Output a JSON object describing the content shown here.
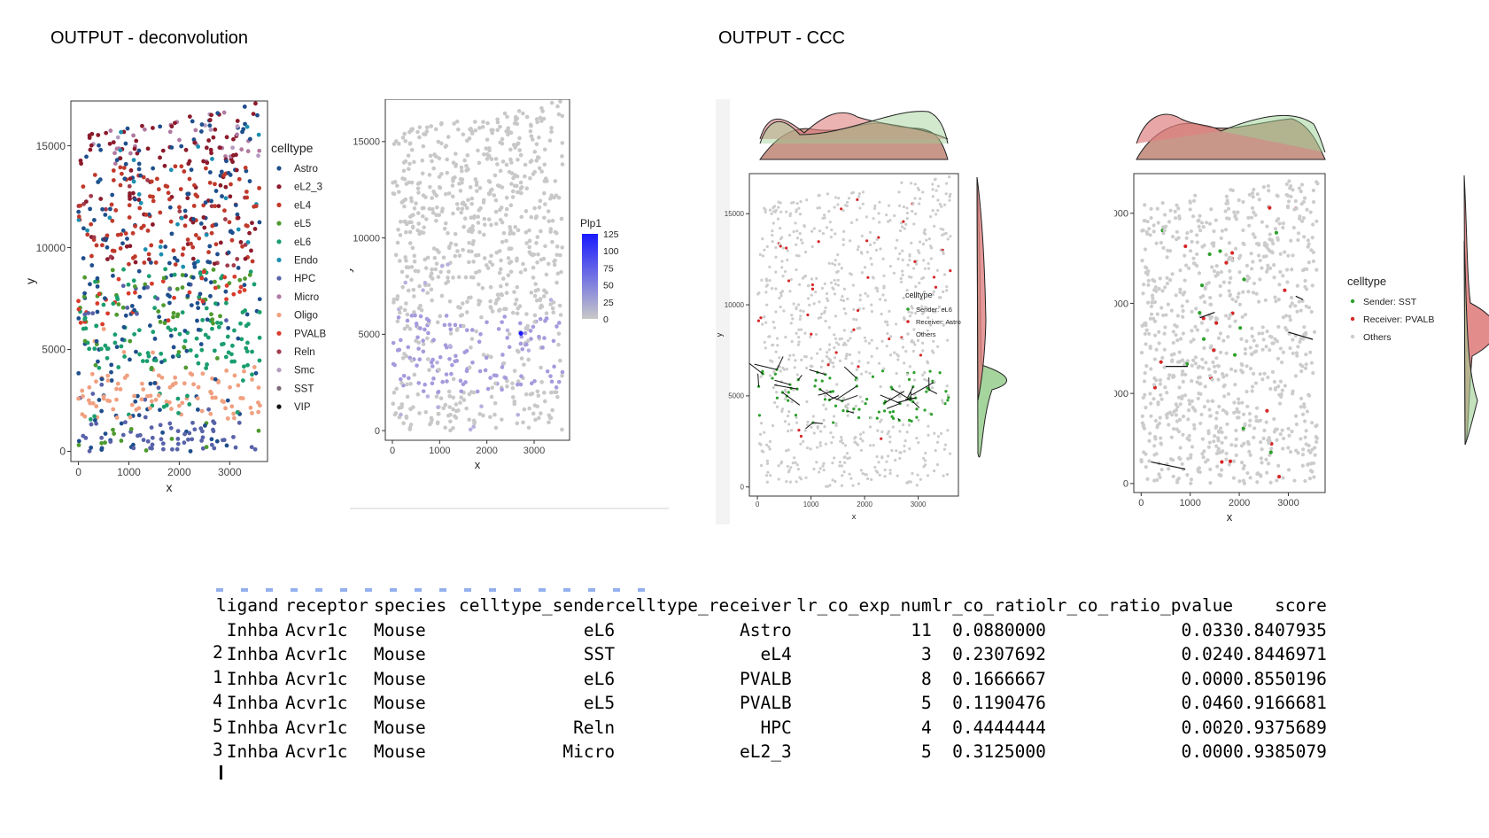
{
  "headings": {
    "deconvolution": "OUTPUT - deconvolution",
    "ccc": "OUTPUT - CCC"
  },
  "chart_data": [
    {
      "type": "scatter",
      "xlabel": "x",
      "ylabel": "y",
      "xticks": [
        0,
        1000,
        2000,
        3000
      ],
      "yticks": [
        0,
        5000,
        10000,
        15000
      ],
      "xlim": [
        -150,
        3750
      ],
      "ylim": [
        -500,
        17200
      ],
      "legend": {
        "title": "celltype",
        "placement": "right",
        "entries": [
          "Astro",
          "eL2_3",
          "eL4",
          "eL5",
          "eL6",
          "Endo",
          "HPC",
          "Micro",
          "Oligo",
          "PVALB",
          "Reln",
          "Smc",
          "SST",
          "VIP"
        ]
      },
      "colors": {
        "Astro": "#1f4e8c",
        "eL2_3": "#8b1a2b",
        "eL4": "#c0392b",
        "eL5": "#4e9a2f",
        "eL6": "#1b9e6e",
        "Endo": "#1b8fb0",
        "HPC": "#5862a8",
        "Micro": "#b07aa1",
        "Oligo": "#f0a080",
        "PVALB": "#d93a2b",
        "Reln": "#a23b4b",
        "Smc": "#b39cc0",
        "SST": "#7a6a7a",
        "VIP": "#111111"
      },
      "bands": [
        {
          "y": [
            14000,
            16800
          ],
          "mix": {
            "eL2_3": 5,
            "Astro": 3,
            "Micro": 3,
            "Endo": 1,
            "Smc": 1
          }
        },
        {
          "y": [
            9000,
            14000
          ],
          "mix": {
            "eL4": 6,
            "eL2_3": 3,
            "Astro": 3,
            "Endo": 1,
            "Reln": 1
          }
        },
        {
          "y": [
            6200,
            9000
          ],
          "mix": {
            "eL5": 3,
            "eL6": 3,
            "Astro": 3,
            "PVALB": 2,
            "HPC": 1
          }
        },
        {
          "y": [
            4000,
            6200
          ],
          "mix": {
            "eL6": 6,
            "Astro": 2,
            "eL5": 1,
            "Oligo": 1
          }
        },
        {
          "y": [
            1500,
            4000
          ],
          "mix": {
            "Oligo": 6,
            "Astro": 2,
            "eL6": 1,
            "HPC": 1
          }
        },
        {
          "y": [
            0,
            1500
          ],
          "mix": {
            "HPC": 7,
            "Astro": 2,
            "eL5": 1
          }
        }
      ]
    },
    {
      "type": "scatter",
      "xlabel": "x",
      "ylabel": "y",
      "xticks": [
        0,
        1000,
        2000,
        3000
      ],
      "yticks": [
        0,
        5000,
        10000,
        15000
      ],
      "xlim": [
        -150,
        3750
      ],
      "ylim": [
        -500,
        17200
      ],
      "colorbar": {
        "title": "Plp1",
        "ticks": [
          125,
          100,
          75,
          50,
          25,
          0
        ],
        "low": "#c8c8c8",
        "high": "#1a1aff"
      },
      "expression_band": {
        "y": [
          2000,
          6000
        ],
        "level": 35
      },
      "peak_point": {
        "x": 2720,
        "y": 5050,
        "value": 125
      }
    },
    {
      "type": "scatter",
      "xlabel": "x",
      "ylabel": "y",
      "xticks": [
        0,
        1000,
        2000,
        3000
      ],
      "yticks": [
        0,
        5000,
        10000,
        15000
      ],
      "xlim": [
        -150,
        3750
      ],
      "ylim": [
        -500,
        17200
      ],
      "legend": {
        "title": "celltype",
        "placement": "right",
        "entries": [
          "Sender: eL6",
          "Receiver: Astro",
          "Others"
        ]
      },
      "colors": {
        "sender": "#2ca02c",
        "receiver": "#d62728",
        "others": "#cccccc"
      },
      "sender_band": {
        "y": [
          3500,
          6500
        ]
      },
      "receiver_band": {
        "y": [
          6500,
          16000
        ]
      }
    },
    {
      "type": "scatter",
      "xlabel": "x",
      "ylabel": "y",
      "xticks": [
        0,
        1000,
        2000,
        3000
      ],
      "yticks": [
        0,
        5000,
        10000,
        15000
      ],
      "xlim": [
        -150,
        3750
      ],
      "ylim": [
        -500,
        17200
      ],
      "legend": {
        "title": "celltype",
        "placement": "right",
        "entries": [
          "Sender: SST",
          "Receiver: PVALB",
          "Others"
        ]
      },
      "colors": {
        "sender": "#2ca02c",
        "receiver": "#d62728",
        "others": "#cccccc"
      }
    }
  ],
  "table": {
    "columns": [
      "ligand",
      "receptor",
      "species",
      "celltype_sender",
      "celltype_receiver",
      "lr_co_exp_num",
      "lr_co_ratio",
      "lr_co_ratio_pvalue",
      "score"
    ],
    "row_index_fragments": [
      "",
      "2",
      "1",
      "4",
      "5",
      "3"
    ],
    "rows": [
      [
        "Inhba",
        "Acvr1c",
        "Mouse",
        "eL6",
        "Astro",
        "11",
        "0.0880000",
        "0.033",
        "0.8407935"
      ],
      [
        "Inhba",
        "Acvr1c",
        "Mouse",
        "SST",
        "eL4",
        "3",
        "0.2307692",
        "0.024",
        "0.8446971"
      ],
      [
        "Inhba",
        "Acvr1c",
        "Mouse",
        "eL6",
        "PVALB",
        "8",
        "0.1666667",
        "0.000",
        "0.8550196"
      ],
      [
        "Inhba",
        "Acvr1c",
        "Mouse",
        "eL5",
        "PVALB",
        "5",
        "0.1190476",
        "0.046",
        "0.9166681"
      ],
      [
        "Inhba",
        "Acvr1c",
        "Mouse",
        "Reln",
        "HPC",
        "4",
        "0.4444444",
        "0.002",
        "0.9375689"
      ],
      [
        "Inhba",
        "Acvr1c",
        "Mouse",
        "Micro",
        "eL2_3",
        "5",
        "0.3125000",
        "0.000",
        "0.9385079"
      ]
    ]
  }
}
